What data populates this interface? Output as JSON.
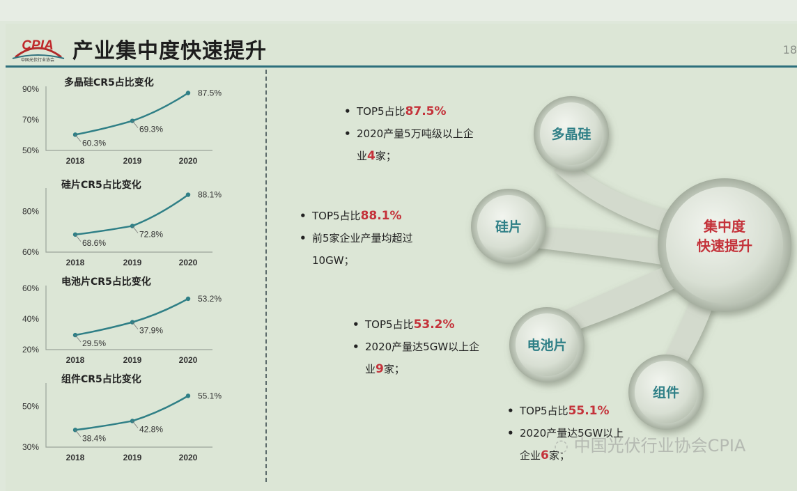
{
  "slide": {
    "title": "产业集中度快速提升",
    "page_number": "18",
    "logo_text": "CPIA",
    "logo_subtext": "中国光伏行业协会"
  },
  "charts": [
    {
      "title": "多晶硅CR5占比变化",
      "yticks": [
        "90%",
        "70%",
        "50%"
      ],
      "xticks": [
        "2018",
        "2019",
        "2020"
      ],
      "labels": [
        "60.3%",
        "69.3%",
        "87.5%"
      ]
    },
    {
      "title": "硅片CR5占比变化",
      "yticks": [
        "80%",
        "60%"
      ],
      "xticks": [
        "2018",
        "2019",
        "2020"
      ],
      "labels": [
        "68.6%",
        "72.8%",
        "88.1%"
      ]
    },
    {
      "title": "电池片CR5占比变化",
      "yticks": [
        "60%",
        "40%",
        "20%"
      ],
      "xticks": [
        "2018",
        "2019",
        "2020"
      ],
      "labels": [
        "29.5%",
        "37.9%",
        "53.2%"
      ]
    },
    {
      "title": "组件CR5占比变化",
      "yticks": [
        "50%",
        "30%"
      ],
      "xticks": [
        "2018",
        "2019",
        "2020"
      ],
      "labels": [
        "38.4%",
        "42.8%",
        "55.1%"
      ]
    }
  ],
  "chart_data": [
    {
      "type": "line",
      "title": "多晶硅CR5占比变化",
      "x": [
        "2018",
        "2019",
        "2020"
      ],
      "values": [
        60.3,
        69.3,
        87.5
      ],
      "ylim": [
        50,
        90
      ],
      "grid": false
    },
    {
      "type": "line",
      "title": "硅片CR5占比变化",
      "x": [
        "2018",
        "2019",
        "2020"
      ],
      "values": [
        68.6,
        72.8,
        88.1
      ],
      "ylim": [
        60,
        90
      ],
      "grid": false
    },
    {
      "type": "line",
      "title": "电池片CR5占比变化",
      "x": [
        "2018",
        "2019",
        "2020"
      ],
      "values": [
        29.5,
        37.9,
        53.2
      ],
      "ylim": [
        20,
        60
      ],
      "grid": false
    },
    {
      "type": "line",
      "title": "组件CR5占比变化",
      "x": [
        "2018",
        "2019",
        "2020"
      ],
      "values": [
        38.4,
        42.8,
        55.1
      ],
      "ylim": [
        30,
        60
      ],
      "grid": false
    }
  ],
  "info_blocks": [
    {
      "b1_prefix": "TOP5占比",
      "b1_value": "87.5%",
      "b2_line1": "2020产量5万吨级以上企",
      "b2_line2_prefix": "业",
      "b2_line2_num": "4",
      "b2_line2_suffix": "家；"
    },
    {
      "b1_prefix": "TOP5占比",
      "b1_value": "88.1%",
      "b2_line1": "前5家企业产量均超过",
      "b2_line2_prefix": "10GW；",
      "b2_line2_num": "",
      "b2_line2_suffix": ""
    },
    {
      "b1_prefix": "TOP5占比",
      "b1_value": "53.2%",
      "b2_line1": "2020产量达5GW以上企",
      "b2_line2_prefix": "业",
      "b2_line2_num": "9",
      "b2_line2_suffix": "家；"
    },
    {
      "b1_prefix": "TOP5占比",
      "b1_value": "55.1%",
      "b2_line1": "2020产量达5GW以上",
      "b2_line2_prefix": "企业",
      "b2_line2_num": "6",
      "b2_line2_suffix": "家；"
    }
  ],
  "diagram": {
    "center_line1": "集中度",
    "center_line2": "快速提升",
    "nodes": [
      "多晶硅",
      "硅片",
      "电池片",
      "组件"
    ]
  },
  "watermark": "中国光伏行业协会CPIA",
  "colors": {
    "line": "#2f7f86",
    "accent_red": "#c4323a",
    "node_text": "#2e7f86"
  }
}
